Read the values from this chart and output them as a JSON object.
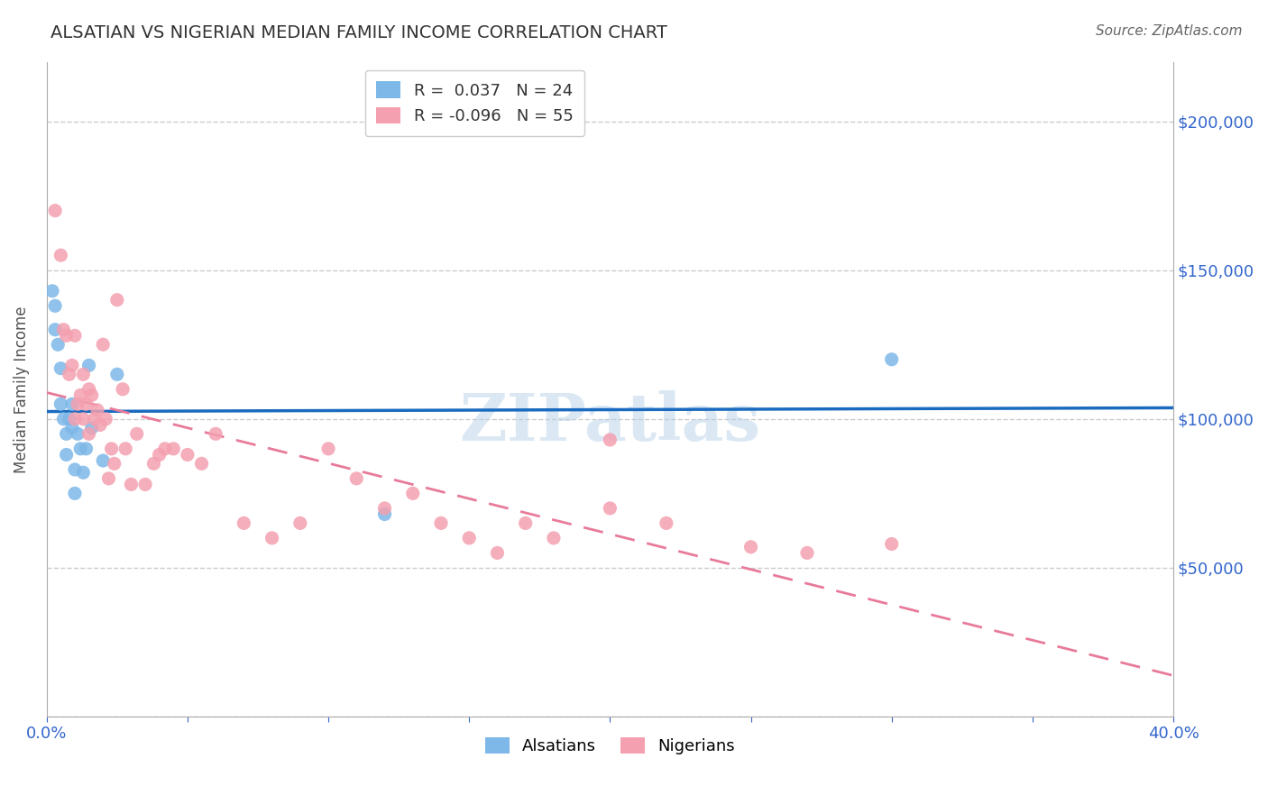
{
  "title": "ALSATIAN VS NIGERIAN MEDIAN FAMILY INCOME CORRELATION CHART",
  "source": "Source: ZipAtlas.com",
  "xlabel": "",
  "ylabel": "Median Family Income",
  "watermark": "ZIPatlas",
  "xlim": [
    0.0,
    0.4
  ],
  "ylim": [
    0,
    220000
  ],
  "yticks": [
    0,
    50000,
    100000,
    150000,
    200000
  ],
  "ytick_labels": [
    "",
    "$50,000",
    "$100,000",
    "$150,000",
    "$200,000"
  ],
  "xticks": [
    0.0,
    0.05,
    0.1,
    0.15,
    0.2,
    0.25,
    0.3,
    0.35,
    0.4
  ],
  "xtick_labels": [
    "0.0%",
    "",
    "",
    "",
    "",
    "",
    "",
    "",
    "40.0%"
  ],
  "alsatian_color": "#7eb8e8",
  "nigerian_color": "#f4a0b0",
  "trend_alsatian_color": "#1a6bbf",
  "trend_nigerian_color": "#e87a9a",
  "legend_label_alsatian": "R =  0.037   N = 24",
  "legend_label_nigerian": "R = -0.096   N = 55",
  "legend_label_alsatian_text": "Alsatians",
  "legend_label_nigerian_text": "Nigerians",
  "alsatian_R": 0.037,
  "alsatian_N": 24,
  "nigerian_R": -0.096,
  "nigerian_N": 55,
  "alsatian_x": [
    0.002,
    0.003,
    0.003,
    0.004,
    0.005,
    0.005,
    0.006,
    0.007,
    0.007,
    0.008,
    0.009,
    0.009,
    0.01,
    0.01,
    0.011,
    0.012,
    0.013,
    0.014,
    0.015,
    0.016,
    0.02,
    0.025,
    0.3,
    0.12
  ],
  "alsatian_y": [
    143000,
    138000,
    130000,
    125000,
    117000,
    105000,
    100000,
    95000,
    88000,
    100000,
    105000,
    97000,
    83000,
    75000,
    95000,
    90000,
    82000,
    90000,
    118000,
    97000,
    86000,
    115000,
    120000,
    68000
  ],
  "nigerian_x": [
    0.003,
    0.005,
    0.006,
    0.007,
    0.008,
    0.009,
    0.01,
    0.01,
    0.011,
    0.012,
    0.013,
    0.013,
    0.014,
    0.015,
    0.015,
    0.016,
    0.017,
    0.018,
    0.019,
    0.02,
    0.021,
    0.022,
    0.023,
    0.024,
    0.025,
    0.027,
    0.028,
    0.03,
    0.032,
    0.035,
    0.038,
    0.04,
    0.042,
    0.045,
    0.05,
    0.055,
    0.06,
    0.07,
    0.08,
    0.09,
    0.1,
    0.11,
    0.12,
    0.13,
    0.14,
    0.15,
    0.16,
    0.17,
    0.18,
    0.2,
    0.22,
    0.25,
    0.27,
    0.3,
    0.2
  ],
  "nigerian_y": [
    170000,
    155000,
    130000,
    128000,
    115000,
    118000,
    128000,
    100000,
    105000,
    108000,
    100000,
    115000,
    105000,
    95000,
    110000,
    108000,
    100000,
    103000,
    98000,
    125000,
    100000,
    80000,
    90000,
    85000,
    140000,
    110000,
    90000,
    78000,
    95000,
    78000,
    85000,
    88000,
    90000,
    90000,
    88000,
    85000,
    95000,
    65000,
    60000,
    65000,
    90000,
    80000,
    70000,
    75000,
    65000,
    60000,
    55000,
    65000,
    60000,
    70000,
    65000,
    57000,
    55000,
    58000,
    93000
  ],
  "background_color": "#ffffff",
  "grid_color": "#cccccc",
  "axis_color": "#aaaaaa",
  "right_label_color": "#3366cc",
  "title_color": "#333333",
  "source_color": "#666666"
}
